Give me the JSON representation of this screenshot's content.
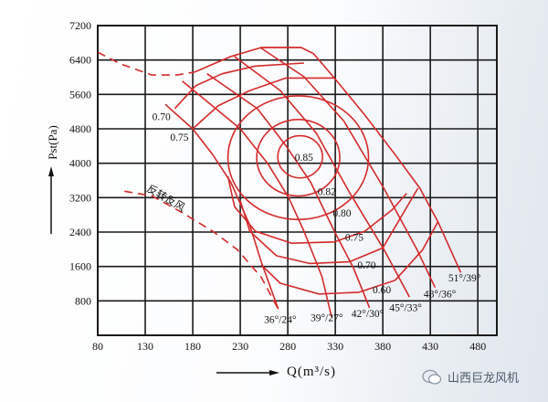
{
  "chart_data": {
    "type": "line",
    "title": "",
    "xlabel": "Q(m³/s)",
    "ylabel": "Pst(Pa)",
    "xlim": [
      80,
      500
    ],
    "ylim": [
      0,
      7200
    ],
    "grid": true,
    "xticks": [
      80,
      130,
      180,
      230,
      280,
      330,
      380,
      430,
      480
    ],
    "yticks": [
      800,
      1600,
      2400,
      3200,
      4000,
      4800,
      5600,
      6400,
      7200
    ],
    "colors": {
      "curves": "#d42a2a",
      "grid": "#1a1a1a"
    },
    "blade_angle_curves": [
      {
        "label": "36°/24°",
        "label_at": [
          272,
          290
        ],
        "points": [
          [
            151,
            5370
          ],
          [
            180,
            4800
          ],
          [
            201,
            4200
          ],
          [
            220,
            3560
          ],
          [
            240,
            2560
          ],
          [
            252,
            1710
          ],
          [
            270,
            610
          ]
        ]
      },
      {
        "label": "39°/27°",
        "label_at": [
          321,
          330
        ],
        "points": [
          [
            169,
            5910
          ],
          [
            230,
            4800
          ],
          [
            259,
            3990
          ],
          [
            281,
            3200
          ],
          [
            297,
            2420
          ],
          [
            316,
            1360
          ],
          [
            326,
            430
          ]
        ]
      },
      {
        "label": "42°/30°",
        "label_at": [
          364,
          420
        ],
        "points": [
          [
            195,
            6080
          ],
          [
            248,
            5270
          ],
          [
            278,
            4410
          ],
          [
            304,
            3560
          ],
          [
            329,
            2420
          ],
          [
            349,
            1570
          ],
          [
            366,
            640
          ]
        ]
      },
      {
        "label": "45°/33°",
        "label_at": [
          404,
          560
        ],
        "points": [
          [
            224,
            6480
          ],
          [
            272,
            5690
          ],
          [
            310,
            4700
          ],
          [
            345,
            3320
          ],
          [
            381,
            2000
          ],
          [
            408,
            890
          ]
        ]
      },
      {
        "label": "48°/36°",
        "label_at": [
          440,
          880
        ],
        "points": [
          [
            251,
            6690
          ],
          [
            297,
            6010
          ],
          [
            339,
            4980
          ],
          [
            381,
            3420
          ],
          [
            416,
            1990
          ],
          [
            435,
            1110
          ]
        ]
      },
      {
        "label": "51°/39°",
        "label_at": [
          466,
          1250
        ],
        "points": [
          [
            252,
            6690
          ],
          [
            294,
            6690
          ],
          [
            307,
            6550
          ],
          [
            329,
            5980
          ],
          [
            361,
            5120
          ],
          [
            393,
            4200
          ],
          [
            419,
            3420
          ],
          [
            438,
            2640
          ],
          [
            462,
            1460
          ]
        ]
      }
    ],
    "boundary_curves": [
      {
        "points": [
          [
            182,
            6120
          ],
          [
            220,
            6480
          ],
          [
            252,
            6690
          ],
          [
            294,
            6690
          ]
        ]
      }
    ],
    "efficiency_ellipses": [
      {
        "label": "0.85",
        "label_at": [
          297,
          4060
        ],
        "center": [
          293,
          4150
        ],
        "radius": [
          23.5,
          490
        ]
      },
      {
        "label": "0.82",
        "label_at": [
          321,
          3260
        ],
        "center": [
          291,
          4128
        ],
        "radius": [
          43.7,
          889
        ]
      },
      {
        "label": "0.80",
        "label_at": [
          337,
          2760
        ],
        "center": [
          291,
          4128
        ],
        "radius": [
          74,
          1437
        ]
      }
    ],
    "efficiency_curves": [
      {
        "label": "0.75",
        "label_at": [
          350,
          2200
        ],
        "segments": [
          [
            [
              180,
              4800
            ],
            [
              207,
              5340
            ],
            [
              240,
              5690
            ],
            [
              278,
              5980
            ],
            [
              329,
              5980
            ]
          ],
          [
            [
              217,
              3700
            ],
            [
              224,
              2990
            ],
            [
              246,
              2420
            ],
            [
              284,
              2140
            ],
            [
              329,
              2170
            ],
            [
              361,
              2420
            ],
            [
              390,
              2920
            ],
            [
              405,
              3300
            ]
          ]
        ],
        "upper_label": "0.75",
        "upper_label_at": [
          166,
          4520
        ]
      },
      {
        "label": "0.70",
        "label_at": [
          363,
          1550
        ],
        "segments": [
          [
            [
              161,
              5270
            ],
            [
              183,
              5800
            ],
            [
              211,
              6080
            ],
            [
              246,
              6260
            ],
            [
              297,
              6330
            ]
          ],
          [
            [
              230,
              3130
            ],
            [
              240,
              2420
            ],
            [
              268,
              1850
            ],
            [
              303,
              1670
            ],
            [
              345,
              1710
            ],
            [
              380,
              2030
            ],
            [
              417,
              3420
            ]
          ]
        ],
        "upper_label": "0.70",
        "upper_label_at": [
          147,
          5000
        ]
      },
      {
        "label": "0.60",
        "label_at": [
          379,
          980
        ],
        "segments": [
          [
            [
              252,
              1640
            ],
            [
              272,
              1210
            ],
            [
              313,
              960
            ],
            [
              355,
              1000
            ],
            [
              393,
              1280
            ],
            [
              422,
              1990
            ],
            [
              438,
              2640
            ]
          ]
        ]
      }
    ],
    "dashed_curves": [
      {
        "label": "",
        "points": [
          [
            80,
            6580
          ],
          [
            105,
            6300
          ],
          [
            137,
            6050
          ],
          [
            163,
            6050
          ],
          [
            182,
            6120
          ]
        ]
      },
      {
        "label": "反转反风",
        "label_at": [
          150,
          3120
        ],
        "points": [
          [
            108,
            3350
          ],
          [
            137,
            3240
          ],
          [
            169,
            2850
          ],
          [
            201,
            2420
          ],
          [
            227,
            1990
          ],
          [
            252,
            1350
          ],
          [
            271,
            570
          ]
        ]
      }
    ]
  },
  "watermark": {
    "icon": "wechat-icon",
    "text": "山西巨龙风机"
  }
}
